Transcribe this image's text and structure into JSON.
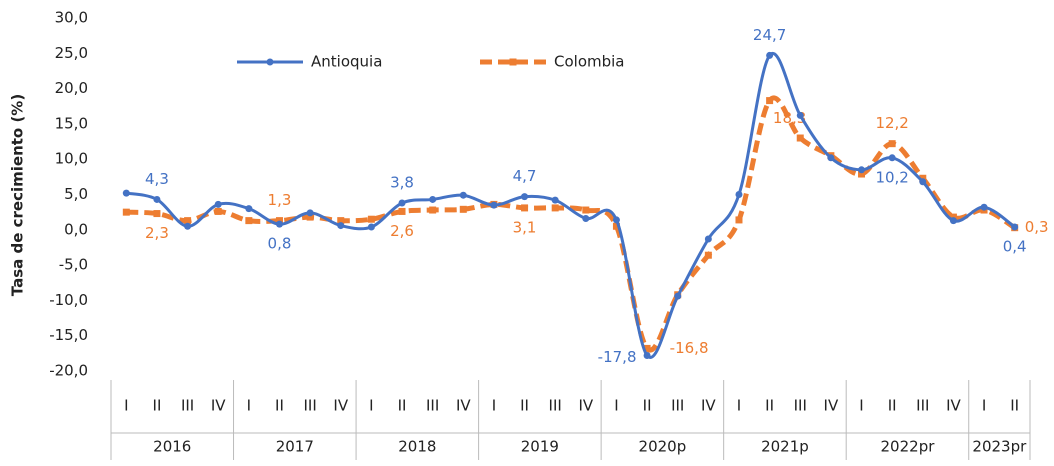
{
  "chart_data": {
    "type": "line",
    "y_label": "Tasa de crecimiento (%)",
    "categories": [
      "I",
      "II",
      "III",
      "IV",
      "I",
      "II",
      "III",
      "IV",
      "I",
      "II",
      "III",
      "IV",
      "I",
      "II",
      "III",
      "IV",
      "I",
      "II",
      "III",
      "IV",
      "I",
      "II",
      "III",
      "IV",
      "I",
      "II",
      "III",
      "IV",
      "I",
      "II"
    ],
    "category_groups": [
      {
        "label": "2016",
        "count": 4
      },
      {
        "label": "2017",
        "count": 4
      },
      {
        "label": "2018",
        "count": 4
      },
      {
        "label": "2019",
        "count": 4
      },
      {
        "label": "2020p",
        "count": 4
      },
      {
        "label": "2021p",
        "count": 4
      },
      {
        "label": "2022pr",
        "count": 4
      },
      {
        "label": "2023pr",
        "count": 2
      }
    ],
    "series": [
      {
        "name": "Antioquia",
        "color": "#4472c4",
        "values": [
          5.2,
          4.3,
          0.5,
          3.6,
          3.0,
          0.8,
          2.4,
          0.6,
          0.4,
          3.8,
          4.3,
          4.9,
          3.5,
          4.7,
          4.2,
          1.6,
          1.4,
          -17.8,
          -9.4,
          -1.3,
          5.0,
          24.7,
          16.2,
          10.2,
          8.5,
          10.2,
          6.8,
          1.3,
          3.2,
          0.4
        ],
        "value_labels": [
          null,
          "4,3",
          null,
          null,
          null,
          "0,8",
          null,
          null,
          null,
          "3,8",
          null,
          null,
          null,
          "4,7",
          null,
          null,
          null,
          "-17,8",
          null,
          null,
          null,
          "24,7",
          null,
          null,
          null,
          "10,2",
          null,
          null,
          null,
          "0,4"
        ]
      },
      {
        "name": "Colombia",
        "color": "#ed7d31",
        "values": [
          2.5,
          2.3,
          1.3,
          2.6,
          1.3,
          1.3,
          1.8,
          1.3,
          1.5,
          2.6,
          2.8,
          2.9,
          3.6,
          3.1,
          3.1,
          2.8,
          0.5,
          -16.8,
          -9.2,
          -3.6,
          1.4,
          18.3,
          13.0,
          10.5,
          7.9,
          12.2,
          7.3,
          1.8,
          2.8,
          0.3
        ],
        "value_labels": [
          null,
          "2,3",
          null,
          null,
          null,
          "1,3",
          null,
          null,
          null,
          "2,6",
          null,
          null,
          null,
          "3,1",
          null,
          null,
          null,
          "-16,8",
          null,
          null,
          null,
          "18,3",
          null,
          null,
          null,
          "12,2",
          null,
          null,
          null,
          "0,3"
        ]
      }
    ],
    "ylim": [
      -20,
      30
    ],
    "yticks": [
      {
        "value": -20,
        "label": "-20,0"
      },
      {
        "value": -15,
        "label": "-15,0"
      },
      {
        "value": -10,
        "label": "-10,0"
      },
      {
        "value": -5,
        "label": "-5,0"
      },
      {
        "value": 0,
        "label": "0,0"
      },
      {
        "value": 5,
        "label": "5,0"
      },
      {
        "value": 10,
        "label": "10,0"
      },
      {
        "value": 15,
        "label": "15,0"
      },
      {
        "value": 20,
        "label": "20,0"
      },
      {
        "value": 25,
        "label": "25,0"
      },
      {
        "value": 30,
        "label": "30,0"
      }
    ],
    "grid": false
  }
}
